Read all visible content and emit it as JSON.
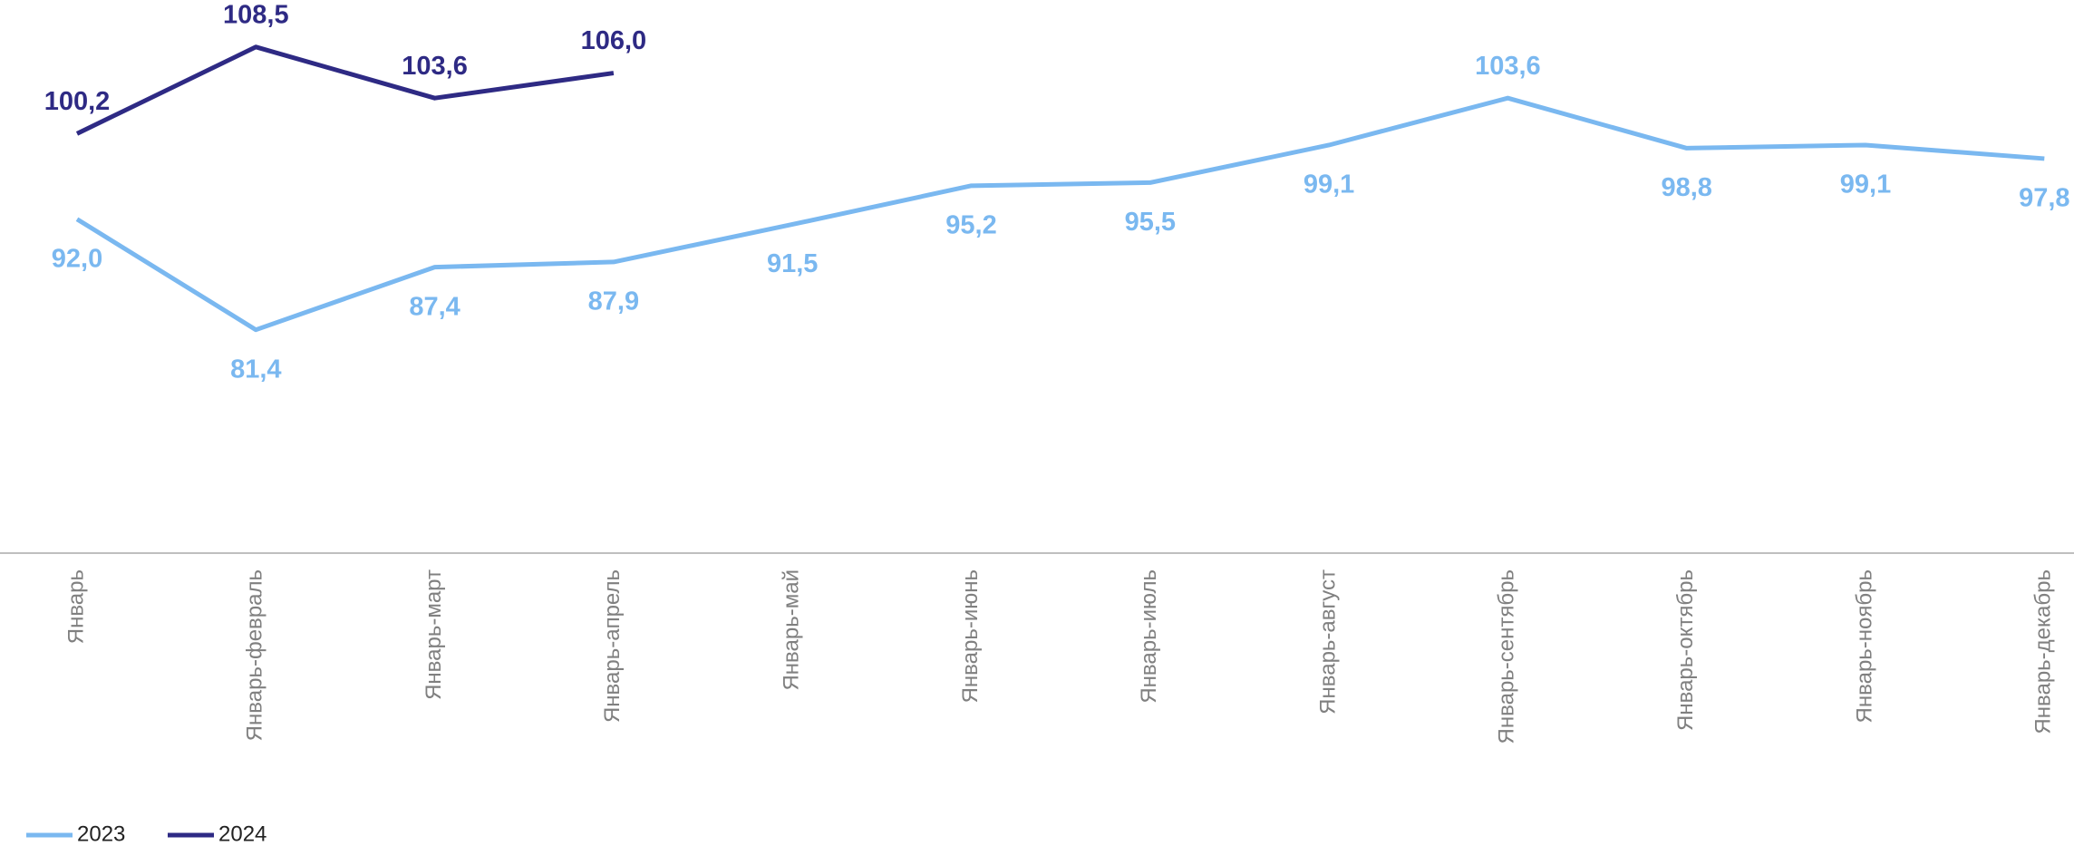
{
  "chart_data": {
    "type": "line",
    "categories": [
      "Январь",
      "Январь-февраль",
      "Январь-март",
      "Январь-апрель",
      "Январь-май",
      "Январь-июнь",
      "Январь-июль",
      "Январь-август",
      "Январь-сентябрь",
      "Январь-октябрь",
      "Январь-ноябрь",
      "Январь-декабрь"
    ],
    "series": [
      {
        "name": "2023",
        "color": "#7ab8f0",
        "values": [
          92.0,
          81.4,
          87.4,
          87.9,
          91.5,
          95.2,
          95.5,
          99.1,
          103.6,
          98.8,
          99.1,
          97.8
        ],
        "value_labels": [
          "92,0",
          "81,4",
          "87,4",
          "87,9",
          "91,5",
          "95,2",
          "95,5",
          "99,1",
          "103,6",
          "98,8",
          "99,1",
          "97,8"
        ]
      },
      {
        "name": "2024",
        "color": "#2e2a84",
        "values": [
          100.2,
          108.5,
          103.6,
          106.0,
          null,
          null,
          null,
          null,
          null,
          null,
          null,
          null
        ],
        "value_labels": [
          "100,2",
          "108,5",
          "103,6",
          "106,0",
          null,
          null,
          null,
          null,
          null,
          null,
          null,
          null
        ]
      }
    ],
    "ylim": [
      60,
      113
    ]
  }
}
